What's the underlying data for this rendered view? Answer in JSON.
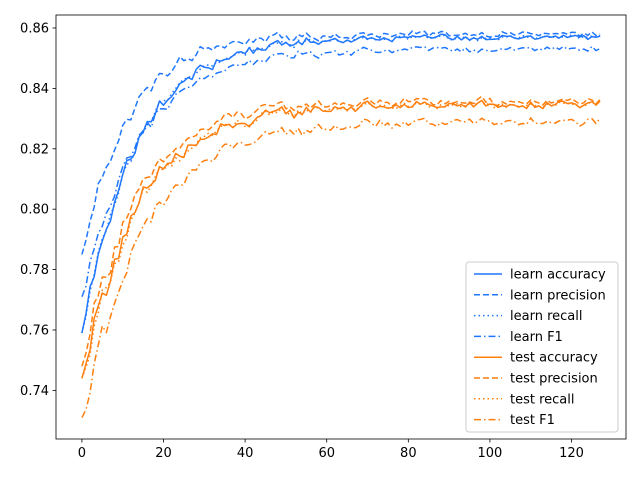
{
  "chart_data": {
    "type": "line",
    "title": "",
    "xlabel": "",
    "ylabel": "",
    "xlim": [
      -6.35,
      133.35
    ],
    "ylim": [
      0.7239,
      0.8643
    ],
    "x_ticks": [
      0,
      20,
      40,
      60,
      80,
      100,
      120
    ],
    "y_ticks": [
      0.74,
      0.76,
      0.78,
      0.8,
      0.82,
      0.84,
      0.86
    ],
    "y_tick_labels": [
      "0.74",
      "0.76",
      "0.78",
      "0.80",
      "0.82",
      "0.84",
      "0.86"
    ],
    "grid": false,
    "legend_position": "lower right",
    "x_max_index": 127,
    "series": [
      {
        "name": "learn accuracy",
        "color": "#1f77ff",
        "dash": "solid",
        "start": 0.759,
        "end": 0.857,
        "k": 0.075,
        "noise": 0.0016,
        "offset": 0.0
      },
      {
        "name": "learn precision",
        "color": "#1f77ff",
        "dash": "dashed",
        "start": 0.785,
        "end": 0.857,
        "k": 0.085,
        "noise": 0.0016,
        "offset": 0.001
      },
      {
        "name": "learn recall",
        "color": "#1f77ff",
        "dash": "dotted",
        "start": 0.759,
        "end": 0.857,
        "k": 0.075,
        "noise": 0.0014,
        "offset": 0.0
      },
      {
        "name": "learn F1",
        "color": "#1f77ff",
        "dash": "dashdot",
        "start": 0.771,
        "end": 0.8545,
        "k": 0.072,
        "noise": 0.0015,
        "offset": -0.0015
      },
      {
        "name": "test accuracy",
        "color": "#ff7f0e",
        "dash": "solid",
        "start": 0.744,
        "end": 0.8345,
        "k": 0.07,
        "noise": 0.0022,
        "offset": 0.0
      },
      {
        "name": "test precision",
        "color": "#ff7f0e",
        "dash": "dashed",
        "start": 0.748,
        "end": 0.835,
        "k": 0.075,
        "noise": 0.0022,
        "offset": 0.0005
      },
      {
        "name": "test recall",
        "color": "#ff7f0e",
        "dash": "dotted",
        "start": 0.744,
        "end": 0.8345,
        "k": 0.07,
        "noise": 0.002,
        "offset": 0.0
      },
      {
        "name": "test F1",
        "color": "#ff7f0e",
        "dash": "dashdot",
        "start": 0.731,
        "end": 0.831,
        "k": 0.065,
        "noise": 0.0022,
        "offset": -0.002
      }
    ]
  }
}
